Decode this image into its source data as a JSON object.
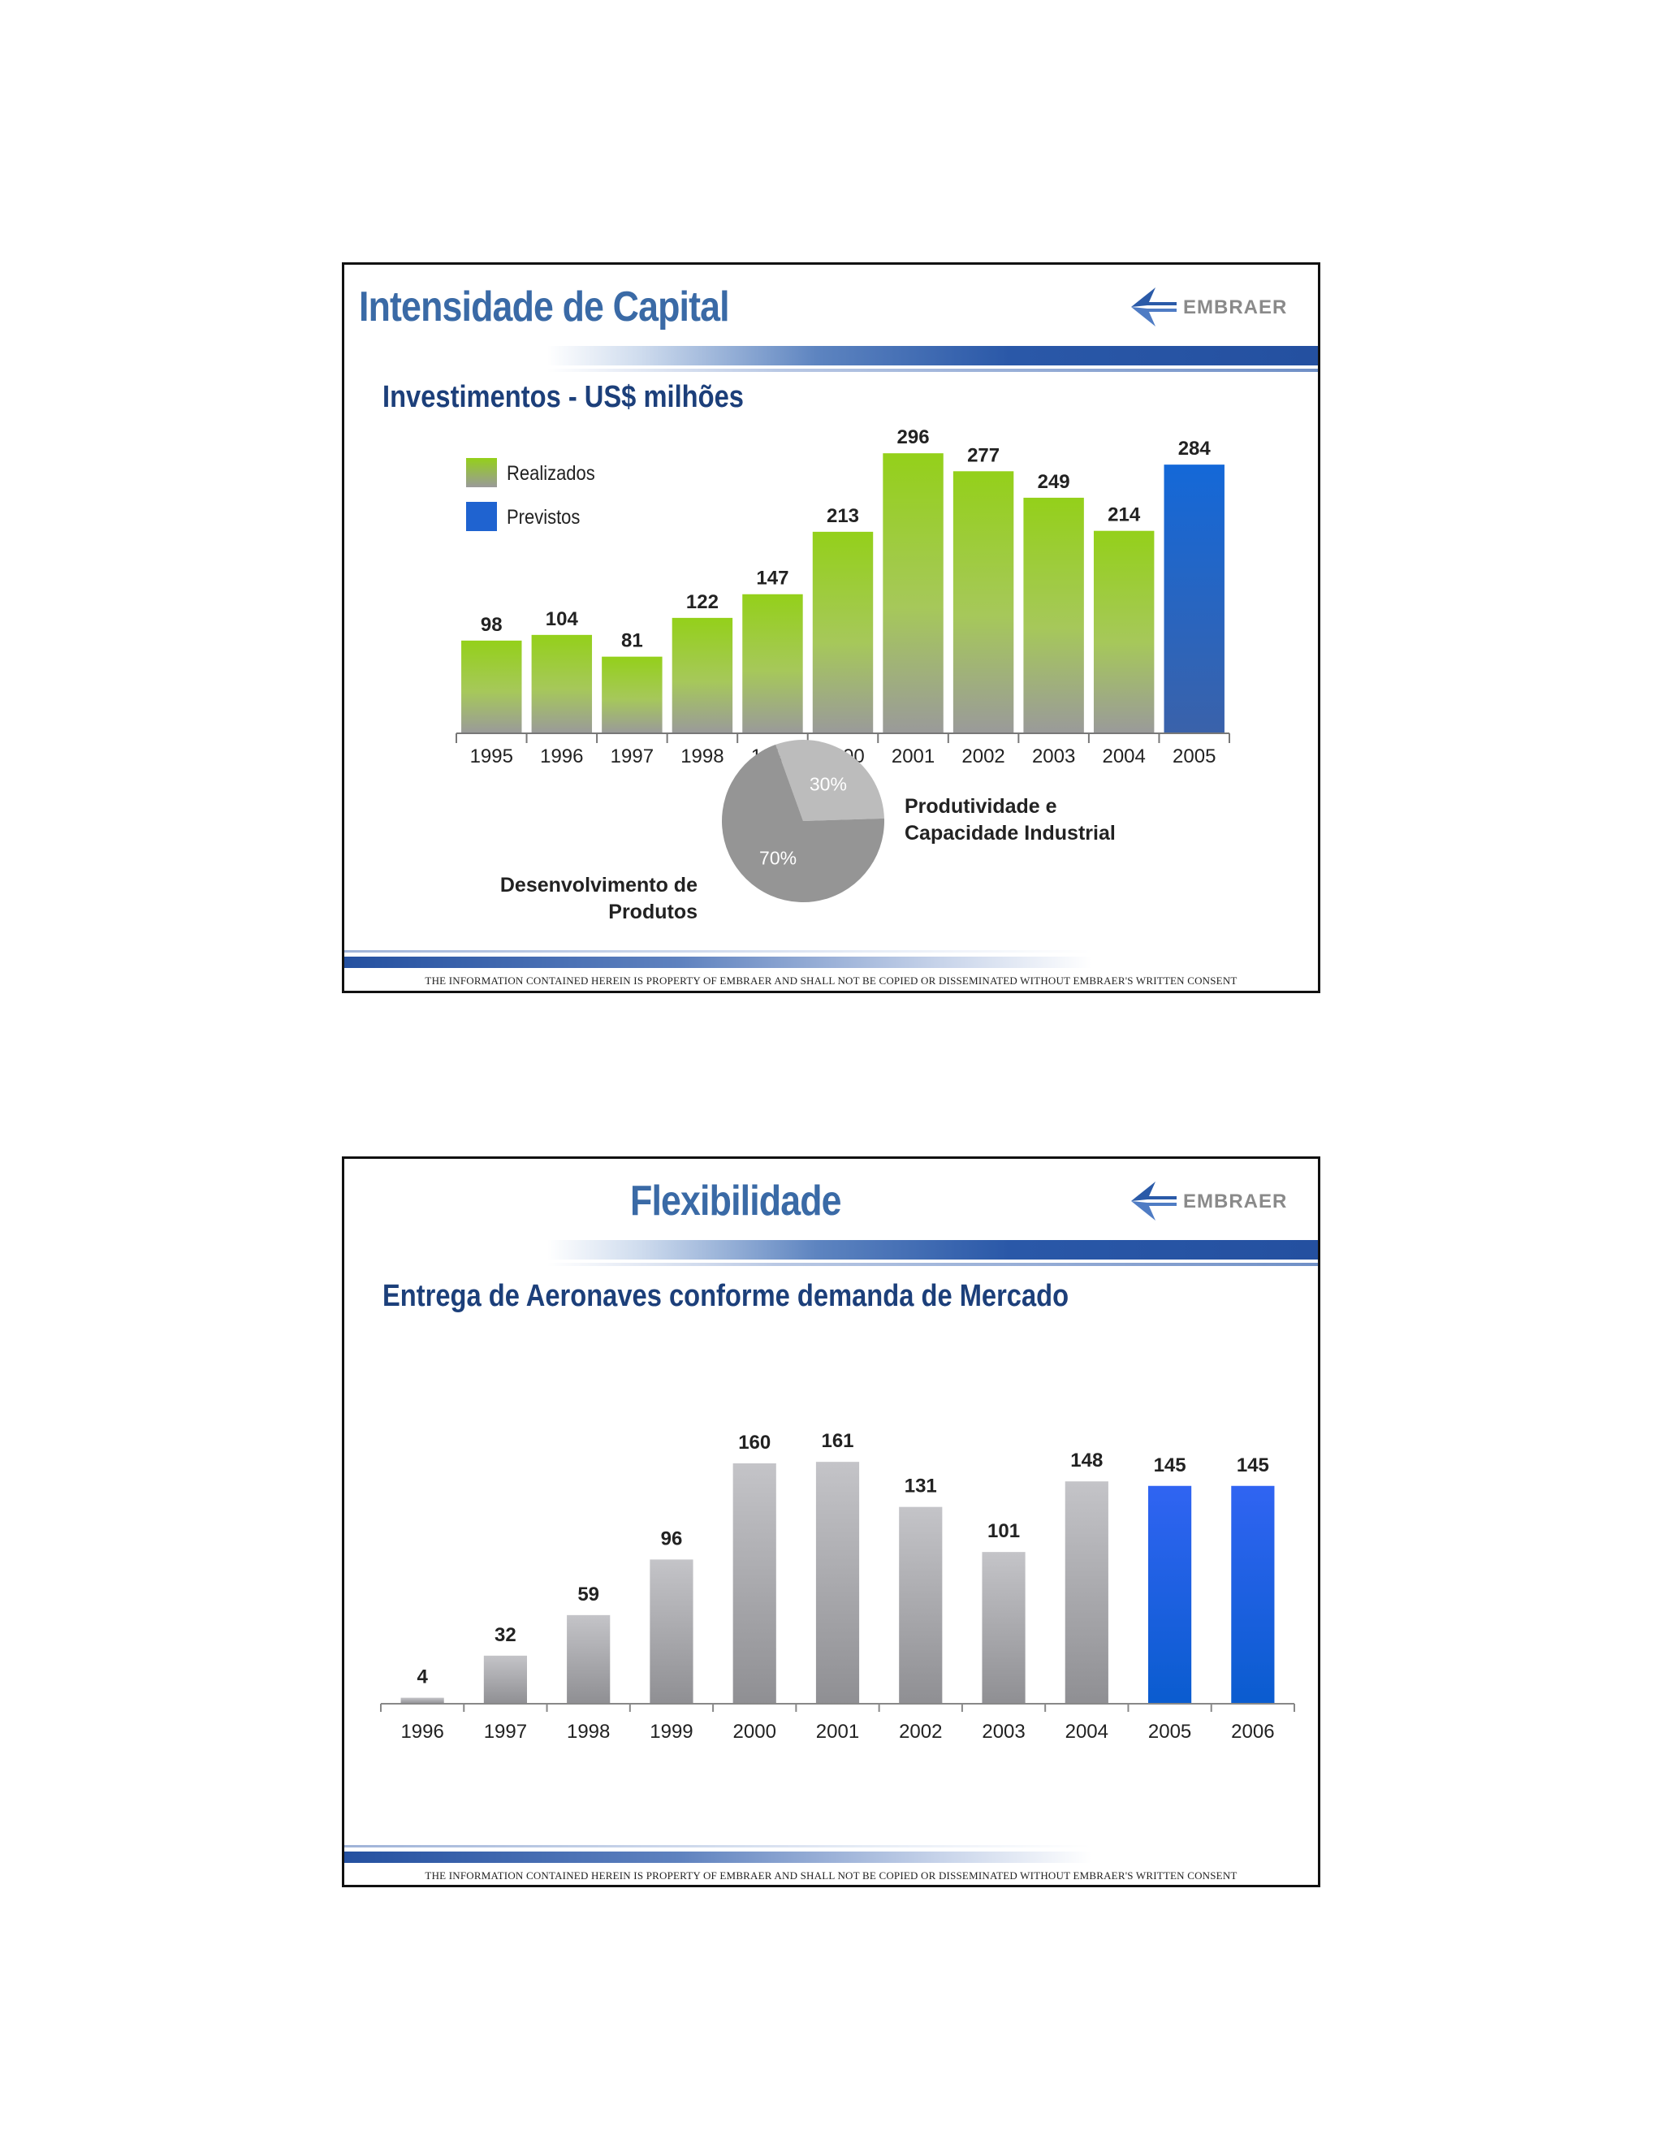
{
  "footer": "THE INFORMATION CONTAINED HEREIN IS PROPERTY OF EMBRAER AND SHALL NOT BE COPIED OR DISSEMINATED WITHOUT EMBRAER'S WRITTEN CONSENT",
  "logo_text": "EMBRAER",
  "colors": {
    "title": "#3a6aa6",
    "subtitle": "#1c3f7a",
    "green": "#8cc820",
    "blue": "#1f63d0",
    "gray": "#9a9a9a"
  },
  "slide1": {
    "title": "Intensidade de Capital",
    "subtitle": "Investimentos - US$ milhões",
    "legend": {
      "realized": "Realizados",
      "planned": "Previstos"
    },
    "pie_labels": {
      "prod_line1": "Produtividade  e",
      "prod_line2": "Capacidade Industrial",
      "dev_line1": "Desenvolvimento de",
      "dev_line2": "Produtos"
    }
  },
  "slide2": {
    "title": "Flexibilidade",
    "subtitle": "Entrega de Aeronaves conforme demanda de Mercado"
  },
  "chart_data": [
    {
      "type": "bar",
      "title": "Investimentos - US$ milhões",
      "categories": [
        "1995",
        "1996",
        "1997",
        "1998",
        "1999",
        "2000",
        "2001",
        "2002",
        "2003",
        "2004",
        "2005"
      ],
      "series": [
        {
          "name": "Realizados",
          "values": [
            98,
            104,
            81,
            122,
            147,
            213,
            296,
            277,
            249,
            214,
            null
          ]
        },
        {
          "name": "Previstos",
          "values": [
            null,
            null,
            null,
            null,
            null,
            null,
            null,
            null,
            null,
            null,
            284
          ]
        }
      ],
      "ylim": [
        0,
        330
      ]
    },
    {
      "type": "pie",
      "slices": [
        {
          "label": "Produtividade e Capacidade Industrial",
          "value": 30,
          "text": "30%"
        },
        {
          "label": "Desenvolvimento de Produtos",
          "value": 70,
          "text": "70%"
        }
      ]
    },
    {
      "type": "bar",
      "title": "Entrega de Aeronaves conforme demanda de Mercado",
      "categories": [
        "1996",
        "1997",
        "1998",
        "1999",
        "2000",
        "2001",
        "2002",
        "2003",
        "2004",
        "2005",
        "2006"
      ],
      "values": [
        4,
        32,
        59,
        96,
        160,
        161,
        131,
        101,
        148,
        145,
        145
      ],
      "forecast": [
        false,
        false,
        false,
        false,
        false,
        false,
        false,
        false,
        false,
        true,
        true
      ],
      "ylim": [
        0,
        190
      ]
    }
  ]
}
